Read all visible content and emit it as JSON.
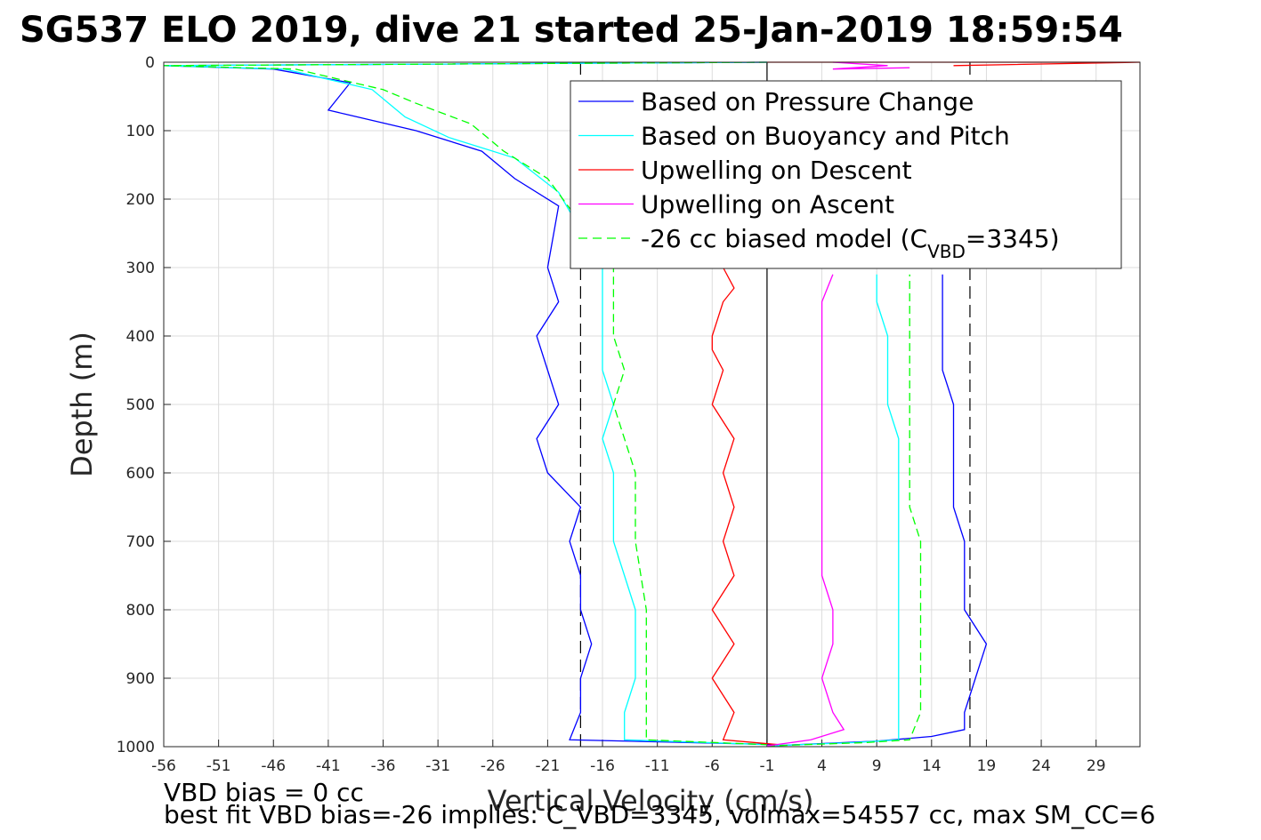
{
  "figure": {
    "title": "SG537 ELO 2019, dive 21 started 25-Jan-2019 18:59:54",
    "footer_line1": "VBD bias = 0 cc",
    "footer_line2": "best fit VBD bias=-26 implies: C_VBD=3345, volmax=54557 cc, max SM_CC=6"
  },
  "chart_data": {
    "type": "line",
    "title": "SG537 ELO 2019, dive 21 started 25-Jan-2019 18:59:54",
    "xlabel": "Vertical Velocity (cm/s)",
    "ylabel": "Depth (m)",
    "xlim": [
      -56,
      33
    ],
    "ylim": [
      0,
      1000
    ],
    "y_reversed": true,
    "grid": true,
    "legend_position": "top-right",
    "x_ticks": [
      -56,
      -51,
      -46,
      -41,
      -36,
      -31,
      -26,
      -21,
      -16,
      -11,
      -6,
      -1,
      4,
      9,
      14,
      19,
      24,
      29
    ],
    "y_ticks": [
      0,
      100,
      200,
      300,
      400,
      500,
      600,
      700,
      800,
      900,
      1000
    ],
    "reference_lines": [
      {
        "style": "solid",
        "color": "#000000",
        "x": -1
      },
      {
        "style": "dashed",
        "color": "#000000",
        "x": -18
      },
      {
        "style": "dashed",
        "color": "#000000",
        "x": 17.5
      }
    ],
    "legend": [
      {
        "label": "Based on Pressure Change",
        "color": "#0000ff",
        "dash": "solid"
      },
      {
        "label": "Based on Buoyancy and Pitch",
        "color": "#00ffff",
        "dash": "solid"
      },
      {
        "label": "Upwelling on Descent",
        "color": "#ff0000",
        "dash": "solid"
      },
      {
        "label": "Upwelling on Ascent",
        "color": "#ff00ff",
        "dash": "solid"
      },
      {
        "label_main": "-26 cc biased model (C",
        "label_sub": "VBD",
        "label_tail": "=3345)",
        "color": "#00ff00",
        "dash": "dashed"
      }
    ],
    "series": [
      {
        "color": "#0000ff",
        "dash": "solid",
        "points": [
          [
            -1,
            0
          ],
          [
            -56,
            5
          ],
          [
            -46,
            10
          ],
          [
            -39,
            30
          ],
          [
            -41,
            70
          ],
          [
            -33,
            100
          ],
          [
            -27,
            130
          ],
          [
            -24,
            170
          ],
          [
            -20,
            210
          ],
          [
            -21,
            300
          ],
          [
            -20,
            350
          ],
          [
            -22,
            400
          ],
          [
            -21,
            450
          ],
          [
            -20,
            500
          ],
          [
            -22,
            550
          ],
          [
            -21,
            600
          ],
          [
            -18,
            650
          ],
          [
            -19,
            700
          ],
          [
            -18,
            750
          ],
          [
            -18,
            800
          ],
          [
            -17,
            850
          ],
          [
            -18,
            900
          ],
          [
            -18,
            950
          ],
          [
            -19,
            990
          ],
          [
            0,
            997
          ]
        ]
      },
      {
        "color": "#0000ff",
        "dash": "solid",
        "points": [
          [
            -1,
            999
          ],
          [
            9,
            992
          ],
          [
            14,
            985
          ],
          [
            17,
            975
          ],
          [
            17,
            950
          ],
          [
            18,
            900
          ],
          [
            19,
            850
          ],
          [
            17,
            800
          ],
          [
            17,
            750
          ],
          [
            17,
            700
          ],
          [
            16,
            650
          ],
          [
            16,
            600
          ],
          [
            16,
            550
          ],
          [
            16,
            500
          ],
          [
            15,
            450
          ],
          [
            15,
            400
          ],
          [
            15,
            350
          ],
          [
            15,
            310
          ]
        ]
      },
      {
        "color": "#00ffff",
        "dash": "solid",
        "points": [
          [
            -1,
            0
          ],
          [
            -56,
            5
          ],
          [
            -45,
            10
          ],
          [
            -37,
            40
          ],
          [
            -34,
            80
          ],
          [
            -30,
            110
          ],
          [
            -24,
            140
          ],
          [
            -20,
            190
          ],
          [
            -16,
            300
          ],
          [
            -16,
            350
          ],
          [
            -16,
            400
          ],
          [
            -16,
            450
          ],
          [
            -15,
            500
          ],
          [
            -16,
            550
          ],
          [
            -15,
            600
          ],
          [
            -15,
            650
          ],
          [
            -15,
            700
          ],
          [
            -14,
            750
          ],
          [
            -13,
            800
          ],
          [
            -13,
            850
          ],
          [
            -13,
            900
          ],
          [
            -14,
            950
          ],
          [
            -14,
            990
          ],
          [
            -1,
            997
          ]
        ]
      },
      {
        "color": "#00ffff",
        "dash": "solid",
        "points": [
          [
            -1,
            999
          ],
          [
            7,
            994
          ],
          [
            11,
            990
          ],
          [
            11,
            950
          ],
          [
            11,
            900
          ],
          [
            11,
            850
          ],
          [
            11,
            800
          ],
          [
            11,
            750
          ],
          [
            11,
            700
          ],
          [
            11,
            650
          ],
          [
            11,
            600
          ],
          [
            11,
            550
          ],
          [
            10,
            500
          ],
          [
            10,
            450
          ],
          [
            10,
            400
          ],
          [
            9,
            350
          ],
          [
            9,
            310
          ]
        ]
      },
      {
        "color": "#00ff00",
        "dash": "dashed",
        "points": [
          [
            -1,
            0
          ],
          [
            -56,
            5
          ],
          [
            -44,
            10
          ],
          [
            -36,
            40
          ],
          [
            -33,
            60
          ],
          [
            -28,
            90
          ],
          [
            -25,
            130
          ],
          [
            -21,
            170
          ],
          [
            -15,
            300
          ],
          [
            -15,
            400
          ],
          [
            -14,
            450
          ],
          [
            -15,
            500
          ],
          [
            -13,
            600
          ],
          [
            -13,
            650
          ],
          [
            -13,
            700
          ],
          [
            -12,
            800
          ],
          [
            -12,
            900
          ],
          [
            -12,
            950
          ],
          [
            -12,
            990
          ],
          [
            -1,
            997
          ]
        ]
      },
      {
        "color": "#00ff00",
        "dash": "dashed",
        "points": [
          [
            -1,
            999
          ],
          [
            8,
            994
          ],
          [
            12,
            990
          ],
          [
            13,
            950
          ],
          [
            13,
            900
          ],
          [
            13,
            850
          ],
          [
            13,
            800
          ],
          [
            13,
            700
          ],
          [
            12,
            650
          ],
          [
            12,
            600
          ],
          [
            12,
            550
          ],
          [
            12,
            500
          ],
          [
            12,
            450
          ],
          [
            12,
            400
          ],
          [
            12,
            350
          ],
          [
            12,
            310
          ]
        ]
      },
      {
        "color": "#ff0000",
        "dash": "solid",
        "points": [
          [
            -5,
            300
          ],
          [
            -4,
            330
          ],
          [
            -5,
            350
          ],
          [
            -6,
            400
          ],
          [
            -6,
            420
          ],
          [
            -5,
            450
          ],
          [
            -6,
            500
          ],
          [
            -4,
            550
          ],
          [
            -5,
            600
          ],
          [
            -4,
            650
          ],
          [
            -5,
            700
          ],
          [
            -4,
            750
          ],
          [
            -6,
            800
          ],
          [
            -4,
            850
          ],
          [
            -6,
            900
          ],
          [
            -4,
            950
          ],
          [
            -5,
            990
          ],
          [
            0,
            997
          ]
        ]
      },
      {
        "color": "#ff0000",
        "dash": "solid",
        "points": [
          [
            3,
            0
          ],
          [
            -1,
            0
          ],
          [
            33,
            0
          ],
          [
            16,
            5
          ]
        ]
      },
      {
        "color": "#ff00ff",
        "dash": "solid",
        "points": [
          [
            -1,
            999
          ],
          [
            3,
            990
          ],
          [
            6,
            975
          ],
          [
            5,
            950
          ],
          [
            4,
            900
          ],
          [
            5,
            850
          ],
          [
            5,
            800
          ],
          [
            4,
            750
          ],
          [
            4,
            700
          ],
          [
            4,
            650
          ],
          [
            4,
            600
          ],
          [
            4,
            550
          ],
          [
            4,
            500
          ],
          [
            4,
            450
          ],
          [
            4,
            400
          ],
          [
            4,
            350
          ],
          [
            5,
            310
          ]
        ]
      },
      {
        "color": "#ff00ff",
        "dash": "solid",
        "points": [
          [
            5,
            0
          ],
          [
            10,
            5
          ],
          [
            5,
            10
          ],
          [
            12,
            8
          ]
        ]
      }
    ]
  }
}
